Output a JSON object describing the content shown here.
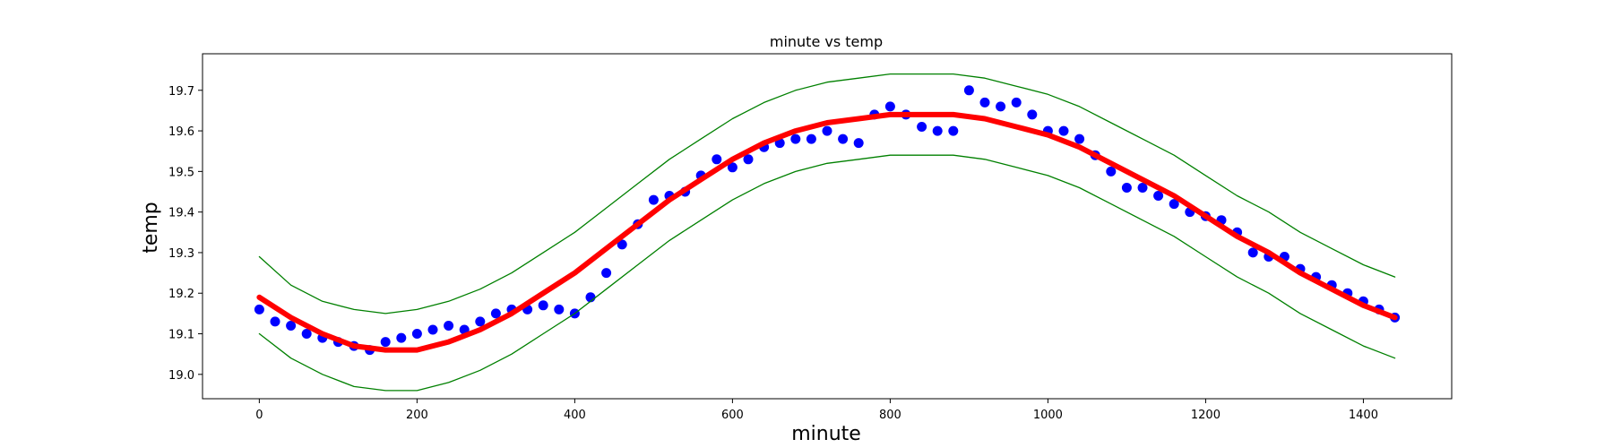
{
  "chart_data": {
    "type": "scatter",
    "title": "minute vs temp",
    "xlabel": "minute",
    "ylabel": "temp",
    "xlim": [
      -72,
      1512
    ],
    "ylim": [
      18.94,
      19.79
    ],
    "xticks": [
      0,
      200,
      400,
      600,
      800,
      1000,
      1200,
      1400
    ],
    "yticks": [
      19.0,
      19.1,
      19.2,
      19.3,
      19.4,
      19.5,
      19.6,
      19.7
    ],
    "xtick_labels": [
      "0",
      "200",
      "400",
      "600",
      "800",
      "1000",
      "1200",
      "1400"
    ],
    "ytick_labels": [
      "19.0",
      "19.1",
      "19.2",
      "19.3",
      "19.4",
      "19.5",
      "19.6",
      "19.7"
    ],
    "grid": false,
    "legend": "none",
    "colors": {
      "points": "#0000ff",
      "fit": "#ff0000",
      "band": "#008000"
    },
    "series": [
      {
        "kind": "scatter",
        "x": [
          0,
          20,
          40,
          60,
          80,
          100,
          120,
          140,
          160,
          180,
          200,
          220,
          240,
          260,
          280,
          300,
          320,
          340,
          360,
          380,
          400,
          420,
          440,
          460,
          480,
          500,
          520,
          540,
          560,
          580,
          600,
          620,
          640,
          660,
          680,
          700,
          720,
          740,
          760,
          780,
          800,
          820,
          840,
          860,
          880,
          900,
          920,
          940,
          960,
          980,
          1000,
          1020,
          1040,
          1060,
          1080,
          1100,
          1120,
          1140,
          1160,
          1180,
          1200,
          1220,
          1240,
          1260,
          1280,
          1300,
          1320,
          1340,
          1360,
          1380,
          1400,
          1420,
          1440
        ],
        "y": [
          19.16,
          19.13,
          19.12,
          19.1,
          19.09,
          19.08,
          19.07,
          19.06,
          19.08,
          19.09,
          19.1,
          19.11,
          19.12,
          19.11,
          19.13,
          19.15,
          19.16,
          19.16,
          19.17,
          19.16,
          19.15,
          19.19,
          19.25,
          19.32,
          19.37,
          19.43,
          19.44,
          19.45,
          19.49,
          19.53,
          19.51,
          19.53,
          19.56,
          19.57,
          19.58,
          19.58,
          19.6,
          19.58,
          19.57,
          19.64,
          19.66,
          19.64,
          19.61,
          19.6,
          19.6,
          19.7,
          19.67,
          19.66,
          19.67,
          19.64,
          19.6,
          19.6,
          19.58,
          19.54,
          19.5,
          19.46,
          19.46,
          19.44,
          19.42,
          19.4,
          19.39,
          19.38,
          19.35,
          19.3,
          19.29,
          19.29,
          19.26,
          19.24,
          19.22,
          19.2,
          19.18,
          19.16,
          19.14
        ]
      },
      {
        "kind": "fit_curve",
        "x": [
          0,
          40,
          80,
          120,
          160,
          200,
          240,
          280,
          320,
          360,
          400,
          440,
          480,
          520,
          560,
          600,
          640,
          680,
          720,
          760,
          800,
          840,
          880,
          920,
          960,
          1000,
          1040,
          1080,
          1120,
          1160,
          1200,
          1240,
          1280,
          1320,
          1360,
          1400,
          1440
        ],
        "y": [
          19.19,
          19.14,
          19.1,
          19.07,
          19.06,
          19.06,
          19.08,
          19.11,
          19.15,
          19.2,
          19.25,
          19.31,
          19.37,
          19.43,
          19.48,
          19.53,
          19.57,
          19.6,
          19.62,
          19.63,
          19.64,
          19.64,
          19.64,
          19.63,
          19.61,
          19.59,
          19.56,
          19.52,
          19.48,
          19.44,
          19.39,
          19.34,
          19.3,
          19.25,
          19.21,
          19.17,
          19.14
        ]
      },
      {
        "kind": "upper_bound",
        "x": [
          0,
          40,
          80,
          120,
          160,
          200,
          240,
          280,
          320,
          360,
          400,
          440,
          480,
          520,
          560,
          600,
          640,
          680,
          720,
          760,
          800,
          840,
          880,
          920,
          960,
          1000,
          1040,
          1080,
          1120,
          1160,
          1200,
          1240,
          1280,
          1320,
          1360,
          1400,
          1440
        ],
        "y": [
          19.29,
          19.22,
          19.18,
          19.16,
          19.15,
          19.16,
          19.18,
          19.21,
          19.25,
          19.3,
          19.35,
          19.41,
          19.47,
          19.53,
          19.58,
          19.63,
          19.67,
          19.7,
          19.72,
          19.73,
          19.74,
          19.74,
          19.74,
          19.73,
          19.71,
          19.69,
          19.66,
          19.62,
          19.58,
          19.54,
          19.49,
          19.44,
          19.4,
          19.35,
          19.31,
          19.27,
          19.24
        ]
      },
      {
        "kind": "lower_bound",
        "x": [
          0,
          40,
          80,
          120,
          160,
          200,
          240,
          280,
          320,
          360,
          400,
          440,
          480,
          520,
          560,
          600,
          640,
          680,
          720,
          760,
          800,
          840,
          880,
          920,
          960,
          1000,
          1040,
          1080,
          1120,
          1160,
          1200,
          1240,
          1280,
          1320,
          1360,
          1400,
          1440
        ],
        "y": [
          19.1,
          19.04,
          19.0,
          18.97,
          18.96,
          18.96,
          18.98,
          19.01,
          19.05,
          19.1,
          19.15,
          19.21,
          19.27,
          19.33,
          19.38,
          19.43,
          19.47,
          19.5,
          19.52,
          19.53,
          19.54,
          19.54,
          19.54,
          19.53,
          19.51,
          19.49,
          19.46,
          19.42,
          19.38,
          19.34,
          19.29,
          19.24,
          19.2,
          19.15,
          19.11,
          19.07,
          19.04
        ]
      }
    ]
  }
}
